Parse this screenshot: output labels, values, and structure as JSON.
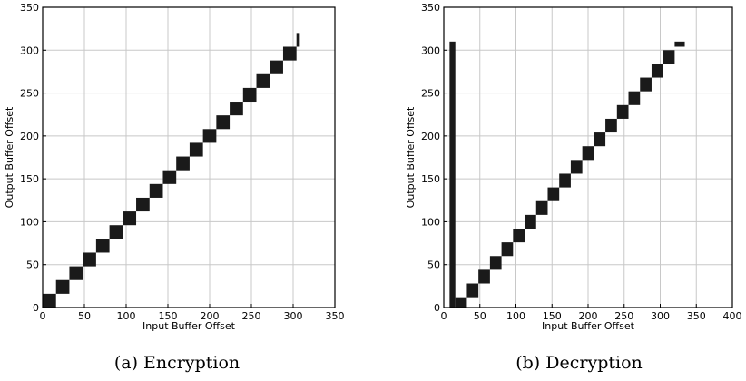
{
  "chart_data": [
    {
      "type": "heatmap",
      "caption": "(a) Encryption",
      "xlabel": "Input Buffer Offset",
      "ylabel": "Output Buffer Offset",
      "xlim": [
        0,
        350
      ],
      "ylim": [
        0,
        350
      ],
      "xticks": [
        0,
        50,
        100,
        150,
        200,
        250,
        300,
        350
      ],
      "yticks": [
        0,
        50,
        100,
        150,
        200,
        250,
        300,
        350
      ],
      "grid": true,
      "blocks": [
        {
          "x": [
            0,
            16
          ],
          "y": [
            0,
            16
          ]
        },
        {
          "x": [
            16,
            32
          ],
          "y": [
            16,
            32
          ]
        },
        {
          "x": [
            32,
            48
          ],
          "y": [
            32,
            48
          ]
        },
        {
          "x": [
            48,
            64
          ],
          "y": [
            48,
            64
          ]
        },
        {
          "x": [
            64,
            80
          ],
          "y": [
            64,
            80
          ]
        },
        {
          "x": [
            80,
            96
          ],
          "y": [
            80,
            96
          ]
        },
        {
          "x": [
            96,
            112
          ],
          "y": [
            96,
            112
          ]
        },
        {
          "x": [
            112,
            128
          ],
          "y": [
            112,
            128
          ]
        },
        {
          "x": [
            128,
            144
          ],
          "y": [
            128,
            144
          ]
        },
        {
          "x": [
            144,
            160
          ],
          "y": [
            144,
            160
          ]
        },
        {
          "x": [
            160,
            176
          ],
          "y": [
            160,
            176
          ]
        },
        {
          "x": [
            176,
            192
          ],
          "y": [
            176,
            192
          ]
        },
        {
          "x": [
            192,
            208
          ],
          "y": [
            192,
            208
          ]
        },
        {
          "x": [
            208,
            224
          ],
          "y": [
            208,
            224
          ]
        },
        {
          "x": [
            224,
            240
          ],
          "y": [
            224,
            240
          ]
        },
        {
          "x": [
            240,
            256
          ],
          "y": [
            240,
            256
          ]
        },
        {
          "x": [
            256,
            272
          ],
          "y": [
            256,
            272
          ]
        },
        {
          "x": [
            272,
            288
          ],
          "y": [
            272,
            288
          ]
        },
        {
          "x": [
            288,
            304
          ],
          "y": [
            288,
            304
          ]
        },
        {
          "x": [
            304,
            308
          ],
          "y": [
            304,
            320
          ]
        }
      ]
    },
    {
      "type": "heatmap",
      "caption": "(b) Decryption",
      "xlabel": "Input Buffer Offset",
      "ylabel": "Output Buffer Offset",
      "xlim": [
        0,
        400
      ],
      "ylim": [
        0,
        350
      ],
      "xticks": [
        0,
        50,
        100,
        150,
        200,
        250,
        300,
        350,
        400
      ],
      "yticks": [
        0,
        50,
        100,
        150,
        200,
        250,
        300,
        350
      ],
      "grid": true,
      "blocks": [
        {
          "x": [
            8,
            16
          ],
          "y": [
            0,
            310
          ]
        },
        {
          "x": [
            16,
            32
          ],
          "y": [
            0,
            12
          ]
        },
        {
          "x": [
            32,
            48
          ],
          "y": [
            12,
            28
          ]
        },
        {
          "x": [
            48,
            64
          ],
          "y": [
            28,
            44
          ]
        },
        {
          "x": [
            64,
            80
          ],
          "y": [
            44,
            60
          ]
        },
        {
          "x": [
            80,
            96
          ],
          "y": [
            60,
            76
          ]
        },
        {
          "x": [
            96,
            112
          ],
          "y": [
            76,
            92
          ]
        },
        {
          "x": [
            112,
            128
          ],
          "y": [
            92,
            108
          ]
        },
        {
          "x": [
            128,
            144
          ],
          "y": [
            108,
            124
          ]
        },
        {
          "x": [
            144,
            160
          ],
          "y": [
            124,
            140
          ]
        },
        {
          "x": [
            160,
            176
          ],
          "y": [
            140,
            156
          ]
        },
        {
          "x": [
            176,
            192
          ],
          "y": [
            156,
            172
          ]
        },
        {
          "x": [
            192,
            208
          ],
          "y": [
            172,
            188
          ]
        },
        {
          "x": [
            208,
            224
          ],
          "y": [
            188,
            204
          ]
        },
        {
          "x": [
            224,
            240
          ],
          "y": [
            204,
            220
          ]
        },
        {
          "x": [
            240,
            256
          ],
          "y": [
            220,
            236
          ]
        },
        {
          "x": [
            256,
            272
          ],
          "y": [
            236,
            252
          ]
        },
        {
          "x": [
            272,
            288
          ],
          "y": [
            252,
            268
          ]
        },
        {
          "x": [
            288,
            304
          ],
          "y": [
            268,
            284
          ]
        },
        {
          "x": [
            304,
            320
          ],
          "y": [
            284,
            300
          ]
        },
        {
          "x": [
            320,
            334
          ],
          "y": [
            304,
            310
          ]
        }
      ]
    }
  ]
}
